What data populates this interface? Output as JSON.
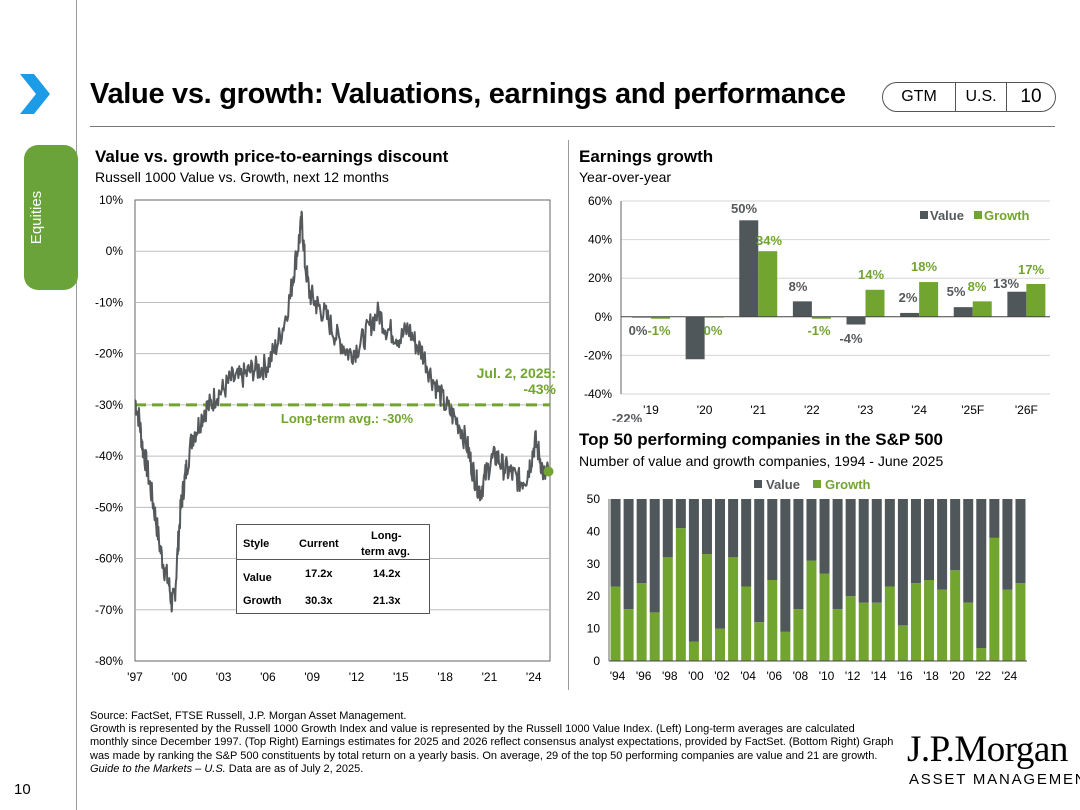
{
  "header": {
    "title": "Value vs. growth: Valuations, earnings and performance",
    "pills": [
      "GTM",
      "U.S.",
      "10"
    ]
  },
  "sidebar": {
    "tab_label": "Equities"
  },
  "left_panel": {
    "title": "Value vs. growth price-to-earnings discount",
    "subtitle": "Russell 1000 Value vs. Growth, next 12 months"
  },
  "right_top_panel": {
    "title": "Earnings growth",
    "subtitle": "Year-over-year"
  },
  "right_bottom_panel": {
    "title": "Top 50 performing companies in the S&P 500",
    "subtitle": "Number of value and growth companies, 1994 - June 2025"
  },
  "colors": {
    "value": "#50575a",
    "growth": "#72a530",
    "accent": "#1c9be6",
    "tab": "#6aa33a"
  },
  "valuation_table": {
    "headers": [
      "Style",
      "Current",
      "Long-",
      "term avg."
    ],
    "rows": [
      {
        "style": "Value",
        "current": "17.2x",
        "avg": "14.2x"
      },
      {
        "style": "Growth",
        "current": "30.3x",
        "avg": "21.3x"
      }
    ]
  },
  "chart_data": [
    {
      "type": "line",
      "title": "Value vs. growth price-to-earnings discount",
      "subtitle": "Russell 1000 Value vs. Growth, next 12 months",
      "x_tick_labels": [
        "'97",
        "'00",
        "'03",
        "'06",
        "'09",
        "'12",
        "'15",
        "'18",
        "'21",
        "'24"
      ],
      "y_tick_labels": [
        "10%",
        "0%",
        "-10%",
        "-20%",
        "-30%",
        "-40%",
        "-50%",
        "-60%",
        "-70%",
        "-80%"
      ],
      "ylim": [
        -80,
        10
      ],
      "xlim": [
        1997.5,
        2025.6
      ],
      "series": [
        {
          "name": "Value vs. growth P/E discount",
          "points": [
            [
              1997.5,
              -29
            ],
            [
              1997.8,
              -33
            ],
            [
              1998.0,
              -38
            ],
            [
              1998.3,
              -42
            ],
            [
              1998.6,
              -47
            ],
            [
              1998.9,
              -52
            ],
            [
              1999.2,
              -58
            ],
            [
              1999.5,
              -62
            ],
            [
              1999.8,
              -65
            ],
            [
              2000.0,
              -69
            ],
            [
              2000.2,
              -67
            ],
            [
              2000.4,
              -58
            ],
            [
              2000.6,
              -50
            ],
            [
              2000.8,
              -46
            ],
            [
              2001.0,
              -42
            ],
            [
              2001.4,
              -36
            ],
            [
              2001.8,
              -34
            ],
            [
              2002.2,
              -31
            ],
            [
              2002.6,
              -30
            ],
            [
              2003.0,
              -28
            ],
            [
              2003.5,
              -27
            ],
            [
              2004.0,
              -25
            ],
            [
              2004.5,
              -25
            ],
            [
              2005.0,
              -24
            ],
            [
              2005.5,
              -23
            ],
            [
              2006.0,
              -23
            ],
            [
              2006.5,
              -22
            ],
            [
              2007.0,
              -19
            ],
            [
              2007.5,
              -15
            ],
            [
              2008.0,
              -9
            ],
            [
              2008.3,
              -3
            ],
            [
              2008.6,
              2
            ],
            [
              2008.8,
              6
            ],
            [
              2009.0,
              -2
            ],
            [
              2009.3,
              -8
            ],
            [
              2009.7,
              -10
            ],
            [
              2010.0,
              -11
            ],
            [
              2010.5,
              -13
            ],
            [
              2011.0,
              -16
            ],
            [
              2011.5,
              -18
            ],
            [
              2012.0,
              -20
            ],
            [
              2012.5,
              -19
            ],
            [
              2013.0,
              -17
            ],
            [
              2013.5,
              -14
            ],
            [
              2014.0,
              -12
            ],
            [
              2014.5,
              -15
            ],
            [
              2015.0,
              -16
            ],
            [
              2015.5,
              -17
            ],
            [
              2016.0,
              -15
            ],
            [
              2016.5,
              -18
            ],
            [
              2017.0,
              -20
            ],
            [
              2017.5,
              -24
            ],
            [
              2018.0,
              -27
            ],
            [
              2018.5,
              -30
            ],
            [
              2019.0,
              -32
            ],
            [
              2019.5,
              -34
            ],
            [
              2020.0,
              -38
            ],
            [
              2020.3,
              -42
            ],
            [
              2020.6,
              -45
            ],
            [
              2020.9,
              -47
            ],
            [
              2021.2,
              -44
            ],
            [
              2021.6,
              -41
            ],
            [
              2022.0,
              -40
            ],
            [
              2022.4,
              -42
            ],
            [
              2022.8,
              -43
            ],
            [
              2023.2,
              -44
            ],
            [
              2023.6,
              -45
            ],
            [
              2024.0,
              -44
            ],
            [
              2024.3,
              -41
            ],
            [
              2024.6,
              -37
            ],
            [
              2024.9,
              -40
            ],
            [
              2025.2,
              -44
            ],
            [
              2025.5,
              -43
            ]
          ]
        }
      ],
      "reference_line": {
        "label": "Long-term avg.: -30%",
        "value": -30
      },
      "annotation": {
        "line1": "Jul. 2, 2025:",
        "line2": "-43%",
        "value": -43
      }
    },
    {
      "type": "bar",
      "title": "Earnings growth",
      "subtitle": "Year-over-year",
      "categories": [
        "'19",
        "'20",
        "'21",
        "'22",
        "'23",
        "'24",
        "'25F",
        "'26F"
      ],
      "y_tick_labels": [
        "60%",
        "40%",
        "20%",
        "0%",
        "-20%",
        "-40%"
      ],
      "ylim": [
        -40,
        60
      ],
      "legend": [
        "Value",
        "Growth"
      ],
      "series": [
        {
          "name": "Value",
          "values": [
            0,
            -22,
            50,
            8,
            -4,
            2,
            5,
            13
          ],
          "labels": [
            "0%",
            "-22%",
            "50%",
            "8%",
            "-4%",
            "2%",
            "5%",
            "13%"
          ]
        },
        {
          "name": "Growth",
          "values": [
            -1,
            0,
            34,
            -1,
            14,
            18,
            8,
            17
          ],
          "labels": [
            "-1%",
            "0%",
            "34%",
            "-1%",
            "14%",
            "18%",
            "8%",
            "17%"
          ]
        }
      ]
    },
    {
      "type": "bar",
      "stacked": true,
      "title": "Top 50 performing companies in the S&P 500",
      "subtitle": "Number of value and growth companies, 1994 - June 2025",
      "categories": [
        "1994",
        "1995",
        "1996",
        "1997",
        "1998",
        "1999",
        "2000",
        "2001",
        "2002",
        "2003",
        "2004",
        "2005",
        "2006",
        "2007",
        "2008",
        "2009",
        "2010",
        "2011",
        "2012",
        "2013",
        "2014",
        "2015",
        "2016",
        "2017",
        "2018",
        "2019",
        "2020",
        "2021",
        "2022",
        "2023",
        "2024",
        "2025"
      ],
      "x_tick_labels": [
        "'94",
        "'96",
        "'98",
        "'00",
        "'02",
        "'04",
        "'06",
        "'08",
        "'10",
        "'12",
        "'14",
        "'16",
        "'18",
        "'20",
        "'22",
        "'24"
      ],
      "y_tick_labels": [
        "50",
        "40",
        "30",
        "20",
        "10",
        "0"
      ],
      "ylim": [
        0,
        50
      ],
      "legend": [
        "Value",
        "Growth"
      ],
      "series": [
        {
          "name": "Growth",
          "values": [
            23,
            16,
            24,
            15,
            32,
            41,
            6,
            33,
            10,
            32,
            23,
            12,
            25,
            9,
            16,
            31,
            27,
            16,
            20,
            18,
            18,
            23,
            11,
            24,
            25,
            22,
            28,
            18,
            4,
            38,
            22,
            24
          ]
        },
        {
          "name": "Value",
          "values": [
            27,
            34,
            26,
            35,
            18,
            9,
            44,
            17,
            40,
            18,
            27,
            38,
            25,
            41,
            34,
            19,
            23,
            34,
            30,
            32,
            32,
            27,
            39,
            26,
            25,
            28,
            22,
            32,
            46,
            12,
            28,
            26
          ]
        }
      ]
    }
  ],
  "footer": {
    "source": "Source: FactSet, FTSE Russell, J.P. Morgan Asset Management.",
    "note": "Growth is represented by the Russell 1000 Growth Index and value is represented by the Russell 1000 Value Index. (Left) Long-term averages are calculated monthly since December 1997. (Top Right) Earnings estimates for 2025 and 2026 reflect consensus analyst expectations, provided by FactSet. (Bottom Right) Graph was made by ranking the S&P 500 constituents by total return on a yearly basis. On average, 29 of the top 50 performing companies are value and 21 are growth.",
    "guide_italic": "Guide to the Markets – U.S.",
    "guide_rest": " Data are as of July 2, 2025.",
    "page_number": "10",
    "logo_line1": "J.P.Morgan",
    "logo_line2": "ASSET MANAGEMENT"
  }
}
